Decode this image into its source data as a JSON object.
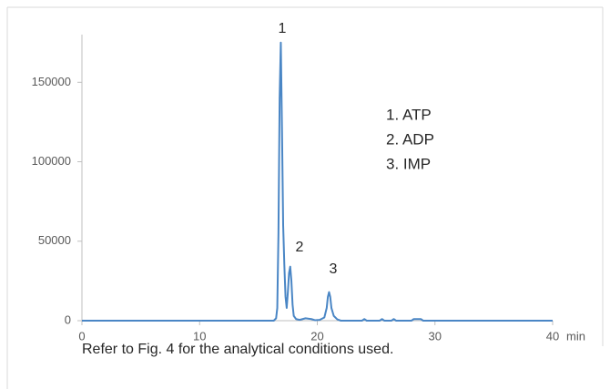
{
  "chart_data": {
    "type": "line",
    "x_label": "min",
    "x": [
      0,
      16.3,
      16.5,
      16.6,
      16.7,
      16.8,
      16.9,
      17.0,
      17.1,
      17.2,
      17.3,
      17.4,
      17.5,
      17.6,
      17.7,
      17.8,
      17.9,
      18.0,
      18.2,
      18.5,
      19.0,
      19.5,
      19.8,
      20.2,
      20.6,
      20.8,
      20.9,
      21.0,
      21.1,
      21.2,
      21.4,
      21.7,
      22.0,
      23.8,
      24.0,
      24.2,
      25.3,
      25.5,
      25.7,
      26.3,
      26.5,
      26.7,
      28.0,
      28.2,
      28.8,
      29.0,
      40
    ],
    "series": [
      {
        "name": "signal",
        "color": "#4a86c5",
        "values": [
          0,
          0,
          1500,
          8000,
          55000,
          140000,
          175000,
          120000,
          60000,
          35000,
          15000,
          8000,
          18000,
          30000,
          34000,
          25000,
          10000,
          3000,
          1000,
          500,
          1500,
          1000,
          300,
          500,
          2000,
          8000,
          15000,
          18000,
          15000,
          8000,
          3000,
          800,
          0,
          0,
          1000,
          0,
          0,
          1000,
          0,
          0,
          1000,
          0,
          0,
          1000,
          1000,
          0,
          0
        ]
      }
    ],
    "xlim": [
      0,
      40
    ],
    "xticks": [
      0,
      10,
      20,
      30,
      40
    ],
    "ylim": [
      0,
      180000
    ],
    "yticks": [
      0,
      50000,
      100000,
      150000
    ],
    "grid": false,
    "peak_labels": [
      "1",
      "2",
      "3"
    ],
    "legend_text": [
      "1. ATP",
      "2. ADP",
      "3. IMP"
    ],
    "caption": "Refer to Fig. 4 for the analytical conditions used."
  }
}
